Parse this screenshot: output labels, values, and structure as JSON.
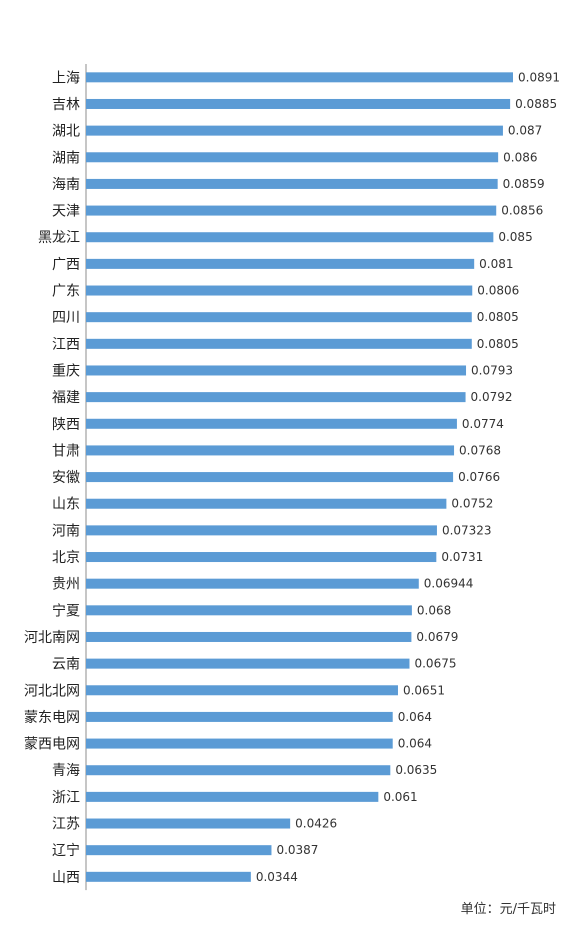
{
  "chart_data": {
    "type": "bar",
    "orientation": "horizontal",
    "categories": [
      "上海",
      "吉林",
      "湖北",
      "湖南",
      "海南",
      "天津",
      "黑龙江",
      "广西",
      "广东",
      "四川",
      "江西",
      "重庆",
      "福建",
      "陕西",
      "甘肃",
      "安徽",
      "山东",
      "河南",
      "北京",
      "贵州",
      "宁夏",
      "河北南网",
      "云南",
      "河北北网",
      "蒙东电网",
      "蒙西电网",
      "青海",
      "浙江",
      "江苏",
      "辽宁",
      "山西"
    ],
    "values": [
      0.0891,
      0.0885,
      0.087,
      0.086,
      0.0859,
      0.0856,
      0.085,
      0.081,
      0.0806,
      0.0805,
      0.0805,
      0.0793,
      0.0792,
      0.0774,
      0.0768,
      0.0766,
      0.0752,
      0.07323,
      0.0731,
      0.06944,
      0.068,
      0.0679,
      0.0675,
      0.0651,
      0.064,
      0.064,
      0.0635,
      0.061,
      0.0426,
      0.0387,
      0.0344
    ],
    "value_labels": [
      "0.0891",
      "0.0885",
      "0.087",
      "0.086",
      "0.0859",
      "0.0856",
      "0.085",
      "0.081",
      "0.0806",
      "0.0805",
      "0.0805",
      "0.0793",
      "0.0792",
      "0.0774",
      "0.0768",
      "0.0766",
      "0.0752",
      "0.07323",
      "0.0731",
      "0.06944",
      "0.068",
      "0.0679",
      "0.0675",
      "0.0651",
      "0.064",
      "0.064",
      "0.0635",
      "0.061",
      "0.0426",
      "0.0387",
      "0.0344"
    ],
    "xlim": [
      0,
      0.0891
    ],
    "bar_color": "#5b9bd5",
    "axis_color": "#8c8c8c",
    "grid": false,
    "legend": "none"
  },
  "unit_label": "单位：元/千瓦时"
}
